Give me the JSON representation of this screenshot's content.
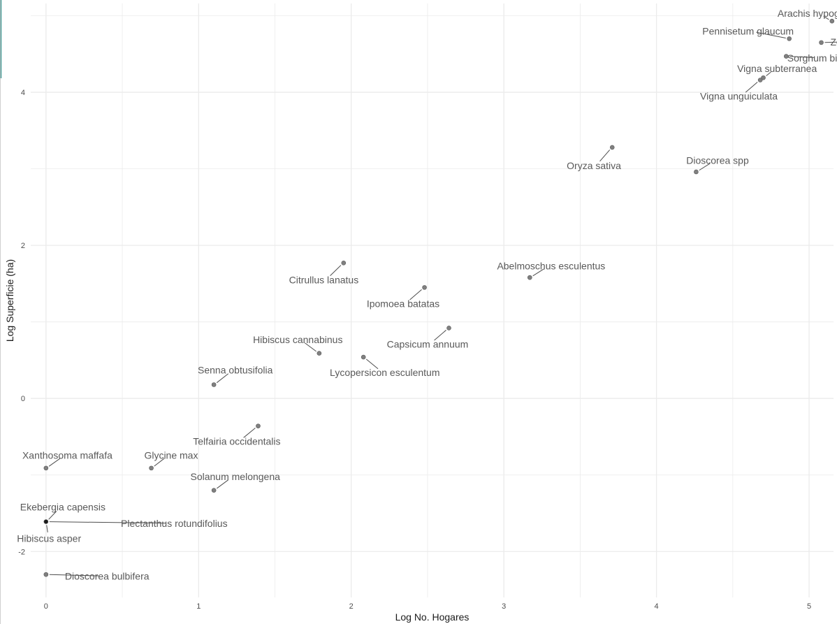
{
  "chart_data": {
    "type": "scatter",
    "title": "",
    "xlabel": "Log No. Hogares",
    "ylabel": "Log Superficie (ha)",
    "xlim": [
      -0.1,
      5.16
    ],
    "ylim": [
      -2.6,
      5.16
    ],
    "x_ticks": [
      0,
      1,
      2,
      3,
      4,
      5
    ],
    "y_ticks": [
      -2,
      0,
      2,
      4
    ],
    "grid": true,
    "legend": "none",
    "colors": {
      "point": "#808080",
      "point_highlight": "#1a1a1a",
      "point_edge": "#5a5a5a",
      "grid": "#ebebeb",
      "label": "#595959",
      "segment": "#4d4d4d"
    },
    "points": [
      {
        "name": "Arachis hypogaea",
        "x": 5.15,
        "y": 4.93,
        "lx": 5.05,
        "ly": 5.03
      },
      {
        "name": "Pennisetum glaucum",
        "x": 4.87,
        "y": 4.7,
        "lx": 4.6,
        "ly": 4.8
      },
      {
        "name": "Zea mays",
        "x": 5.08,
        "y": 4.65,
        "lx": 5.28,
        "ly": 4.66
      },
      {
        "name": "Sorghum bicolor",
        "x": 4.85,
        "y": 4.47,
        "lx": 5.09,
        "ly": 4.45
      },
      {
        "name": "Vigna subterranea",
        "x": 4.7,
        "y": 4.19,
        "lx": 4.79,
        "ly": 4.31
      },
      {
        "name": "Vigna unguiculata",
        "x": 4.68,
        "y": 4.16,
        "lx": 4.54,
        "ly": 3.95
      },
      {
        "name": "Oryza sativa",
        "x": 3.71,
        "y": 3.28,
        "lx": 3.59,
        "ly": 3.04
      },
      {
        "name": "Dioscorea spp",
        "x": 4.26,
        "y": 2.96,
        "lx": 4.4,
        "ly": 3.11
      },
      {
        "name": "Abelmoschus esculentus",
        "x": 3.17,
        "y": 1.58,
        "lx": 3.31,
        "ly": 1.73
      },
      {
        "name": "Citrullus lanatus",
        "x": 1.95,
        "y": 1.77,
        "lx": 1.82,
        "ly": 1.55
      },
      {
        "name": "Ipomoea batatas",
        "x": 2.48,
        "y": 1.45,
        "lx": 2.34,
        "ly": 1.24
      },
      {
        "name": "Capsicum annuum",
        "x": 2.64,
        "y": 0.92,
        "lx": 2.5,
        "ly": 0.71
      },
      {
        "name": "Hibiscus cannabinus",
        "x": 1.79,
        "y": 0.59,
        "lx": 1.65,
        "ly": 0.77
      },
      {
        "name": "Lycopersicon esculentum",
        "x": 2.08,
        "y": 0.54,
        "lx": 2.22,
        "ly": 0.34
      },
      {
        "name": "Senna obtusifolia",
        "x": 1.1,
        "y": 0.18,
        "lx": 1.24,
        "ly": 0.37
      },
      {
        "name": "Telfairia occidentalis",
        "x": 1.39,
        "y": -0.36,
        "lx": 1.25,
        "ly": -0.56
      },
      {
        "name": "Xanthosoma maffafa",
        "x": 0.0,
        "y": -0.91,
        "lx": 0.14,
        "ly": -0.74
      },
      {
        "name": "Glycine max",
        "x": 0.69,
        "y": -0.91,
        "lx": 0.82,
        "ly": -0.74
      },
      {
        "name": "Solanum melongena",
        "x": 1.1,
        "y": -1.2,
        "lx": 1.24,
        "ly": -1.02
      },
      {
        "name": "Ekebergia capensis",
        "x": 0.0,
        "y": -1.61,
        "lx": 0.11,
        "ly": -1.42,
        "highlight": true
      },
      {
        "name": "Plectanthus rotundifolius",
        "x": 0.0,
        "y": -1.61,
        "lx": 0.84,
        "ly": -1.63,
        "highlight": true
      },
      {
        "name": "Hibiscus asper",
        "x": 0.0,
        "y": -1.61,
        "lx": 0.02,
        "ly": -1.83,
        "highlight": true
      },
      {
        "name": "Dioscorea bulbifera",
        "x": 0.0,
        "y": -2.3,
        "lx": 0.4,
        "ly": -2.32
      }
    ]
  }
}
